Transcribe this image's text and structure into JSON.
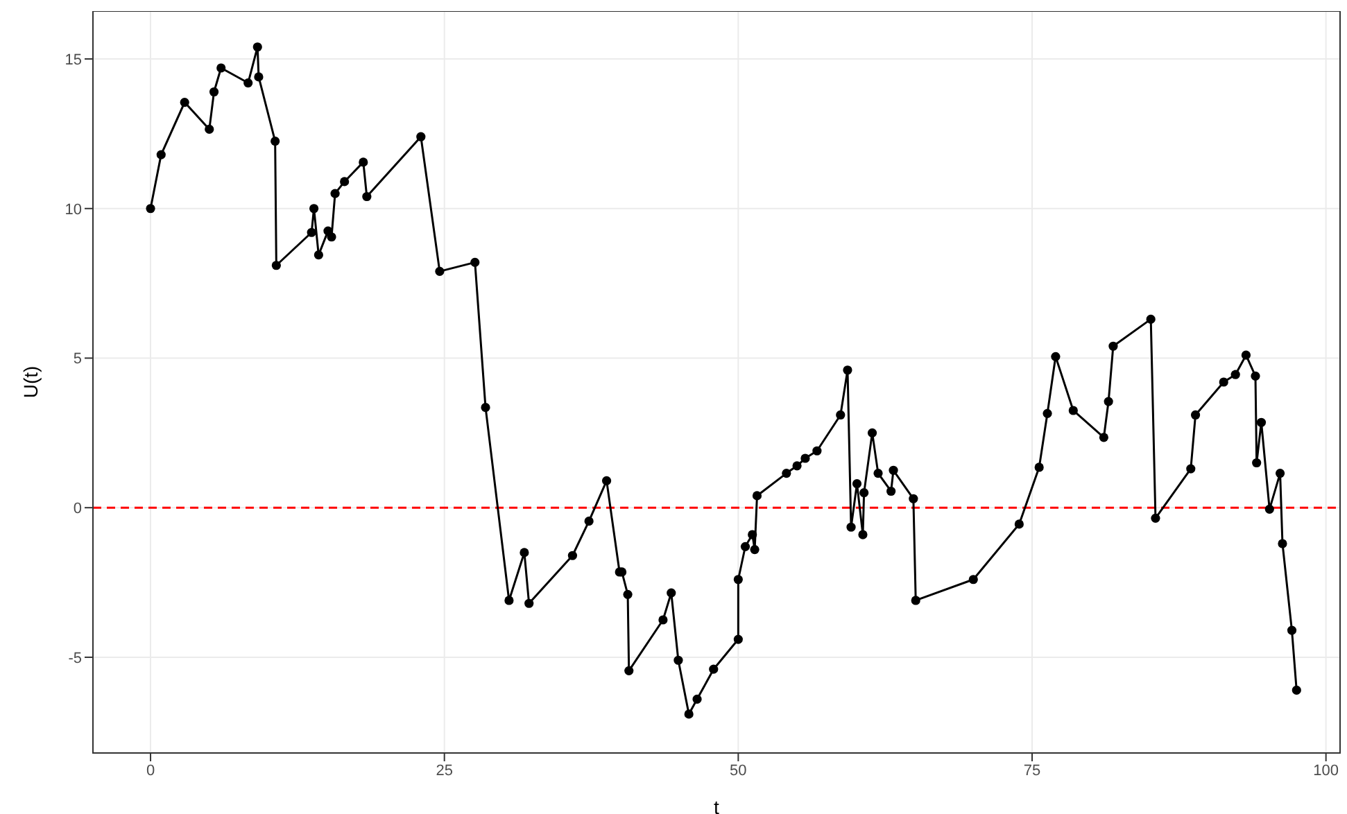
{
  "chart_data": {
    "type": "line",
    "xlabel": "t",
    "ylabel": "U(t)",
    "x": [
      0,
      0.9,
      2.9,
      5.0,
      5.4,
      6.0,
      8.3,
      9.1,
      9.2,
      10.6,
      10.7,
      13.7,
      13.9,
      14.3,
      15.1,
      15.4,
      15.7,
      16.5,
      18.1,
      18.4,
      23.0,
      24.6,
      27.6,
      28.5,
      30.5,
      31.8,
      32.2,
      35.9,
      37.3,
      38.8,
      39.9,
      40.1,
      40.6,
      40.7,
      43.6,
      44.3,
      44.9,
      45.8,
      46.5,
      47.9,
      50.0,
      50.0,
      50.6,
      51.2,
      51.4,
      51.6,
      54.1,
      55.0,
      55.7,
      56.7,
      58.7,
      59.3,
      59.6,
      60.1,
      60.6,
      60.7,
      61.4,
      61.9,
      63.0,
      63.2,
      64.9,
      65.1,
      70.0,
      73.9,
      75.6,
      76.3,
      77.0,
      78.5,
      81.1,
      81.5,
      81.9,
      85.1,
      85.5,
      88.5,
      88.9,
      91.3,
      92.3,
      93.2,
      94.0,
      94.1,
      94.5,
      95.2,
      96.1,
      96.3,
      97.1,
      97.5
    ],
    "series": [
      {
        "color": "#000000",
        "values": [
          10,
          11.8,
          13.55,
          12.65,
          13.9,
          14.7,
          14.2,
          15.4,
          14.4,
          12.25,
          8.1,
          9.2,
          10,
          8.45,
          9.25,
          9.05,
          10.5,
          10.9,
          11.55,
          10.4,
          12.4,
          7.9,
          8.2,
          3.35,
          -3.1,
          -1.5,
          -3.2,
          -1.6,
          -0.45,
          0.9,
          -2.15,
          -2.15,
          -2.9,
          -5.45,
          -3.75,
          -2.85,
          -5.1,
          -6.9,
          -6.4,
          -5.4,
          -4.4,
          -2.4,
          -1.3,
          -0.9,
          -1.4,
          0.4,
          1.15,
          1.4,
          1.65,
          1.9,
          3.1,
          4.6,
          -0.65,
          0.8,
          -0.9,
          0.5,
          2.5,
          1.15,
          0.55,
          1.25,
          0.3,
          -3.1,
          -2.4,
          -0.55,
          1.35,
          3.15,
          5.05,
          3.25,
          2.35,
          3.55,
          5.4,
          6.3,
          -0.35,
          1.3,
          3.1,
          4.2,
          4.45,
          5.1,
          4.4,
          1.5,
          2.85,
          -0.05,
          1.15,
          -1.2,
          -4.1,
          -6.1
        ]
      }
    ],
    "xlim": [
      -4.9,
      101.2
    ],
    "xticks": [
      0,
      25,
      50,
      75,
      100
    ],
    "ylim": [
      -8.2,
      16.6
    ],
    "yticks": [
      -5,
      0,
      5,
      10,
      15
    ],
    "grid": true,
    "marker": "circle",
    "line_style": "solid",
    "ref_lines": [
      {
        "axis": "y",
        "value": 0,
        "color": "#ff0000",
        "line_style": "dashed"
      }
    ]
  }
}
